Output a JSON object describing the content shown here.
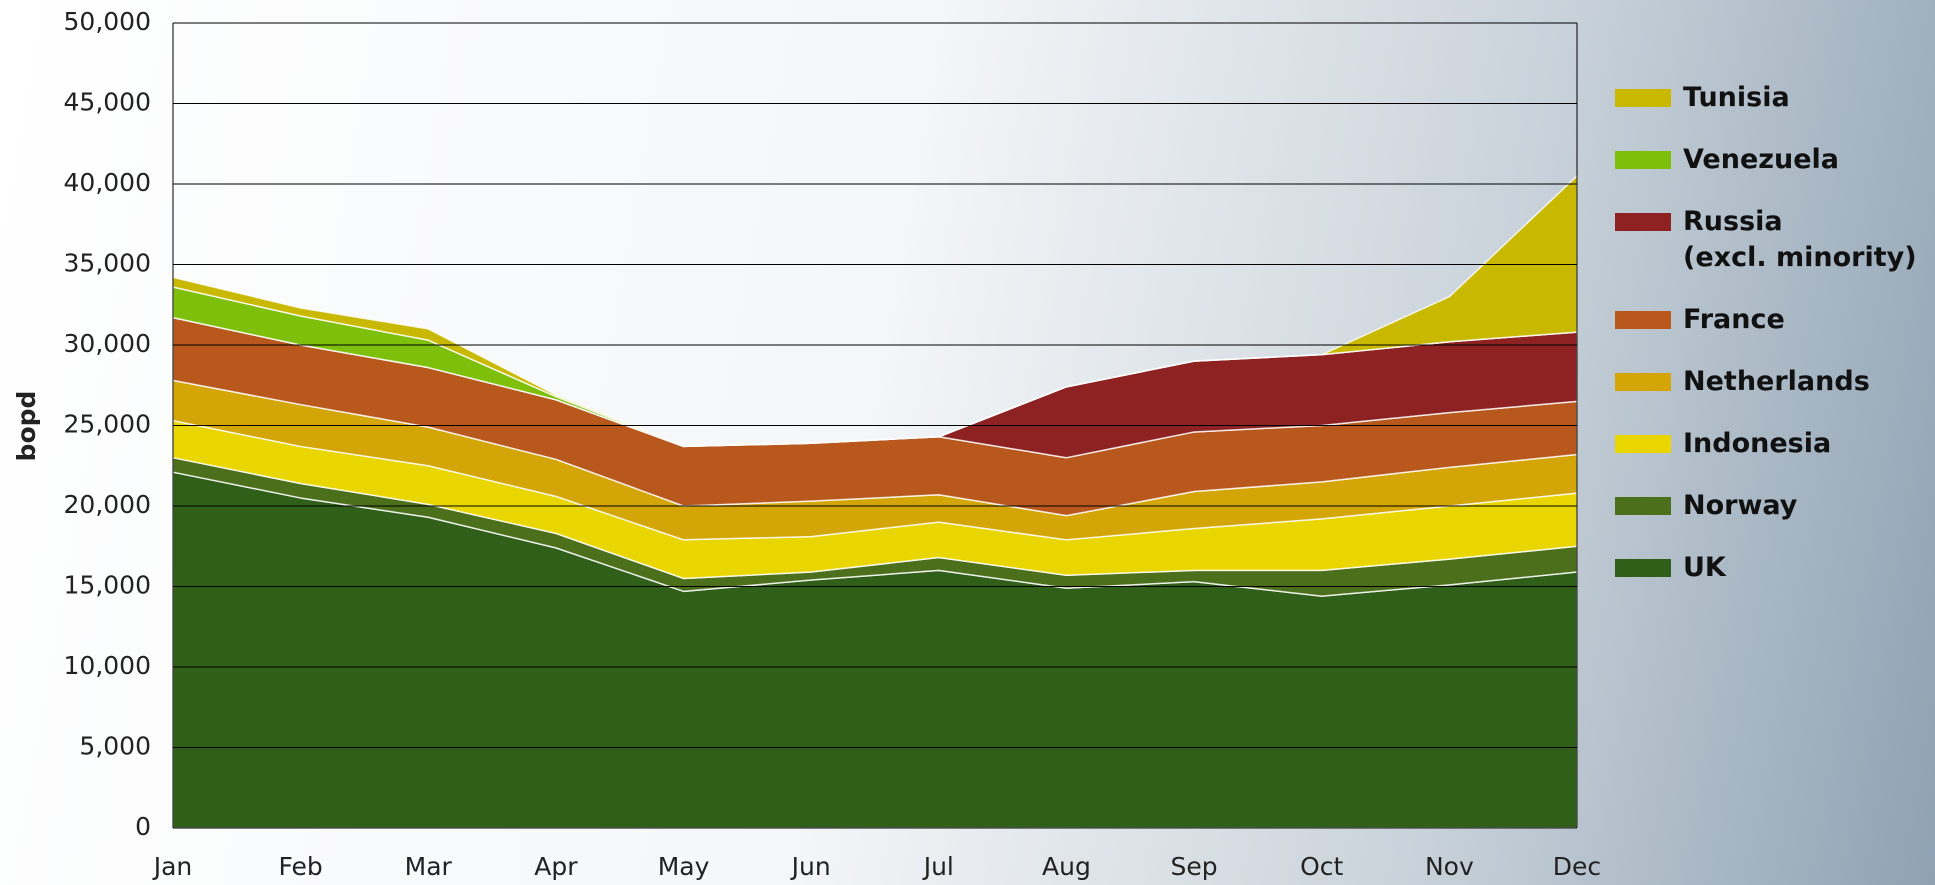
{
  "chart_data": {
    "type": "stacked-area",
    "y_label": "bopd",
    "categories": [
      "Jan",
      "Feb",
      "Mar",
      "Apr",
      "May",
      "Jun",
      "Jul",
      "Aug",
      "Sep",
      "Oct",
      "Nov",
      "Dec"
    ],
    "series": [
      {
        "name": "UK",
        "color": "#2f5f18",
        "values": [
          22100,
          20500,
          19300,
          17400,
          14700,
          15400,
          16000,
          14900,
          15300,
          14400,
          15100,
          15900
        ]
      },
      {
        "name": "Norway",
        "color": "#4c6f1c",
        "values": [
          900,
          900,
          800,
          900,
          800,
          500,
          800,
          800,
          700,
          1600,
          1600,
          1600
        ]
      },
      {
        "name": "Indonesia",
        "color": "#e9d600",
        "values": [
          2300,
          2300,
          2400,
          2300,
          2400,
          2200,
          2200,
          2200,
          2600,
          3200,
          3300,
          3300
        ]
      },
      {
        "name": "Netherlands",
        "color": "#d4a507",
        "values": [
          2500,
          2600,
          2400,
          2300,
          2100,
          2200,
          1700,
          1500,
          2300,
          2300,
          2400,
          2400
        ]
      },
      {
        "name": "France",
        "color": "#b8581d",
        "values": [
          3900,
          3700,
          3700,
          3700,
          3700,
          3600,
          3600,
          3600,
          3700,
          3500,
          3400,
          3300
        ]
      },
      {
        "name": "Russia\n(excl. minority)",
        "color": "#8e2222",
        "values": [
          0,
          0,
          0,
          0,
          0,
          0,
          0,
          4400,
          4400,
          4400,
          4400,
          4300
        ]
      },
      {
        "name": "Venezuela",
        "color": "#7dbf0a",
        "values": [
          1900,
          1800,
          1700,
          200,
          0,
          0,
          0,
          0,
          0,
          0,
          0,
          0
        ]
      },
      {
        "name": "Tunisia",
        "color": "#c9b800",
        "values": [
          600,
          500,
          700,
          100,
          0,
          0,
          0,
          0,
          0,
          0,
          2800,
          9700
        ]
      }
    ],
    "ylim": [
      0,
      50000
    ],
    "yticks": [
      0,
      {
        "value": 5000,
        "label": "5,000"
      },
      {
        "value": 10000,
        "label": "10,000"
      },
      {
        "value": 15000,
        "label": "15,000"
      },
      {
        "value": 20000,
        "label": "20,000"
      },
      {
        "value": 25000,
        "label": "25,000"
      },
      {
        "value": 30000,
        "label": "30,000"
      },
      {
        "value": 35000,
        "label": "35,000"
      },
      {
        "value": 40000,
        "label": "40,000"
      },
      {
        "value": 45000,
        "label": "45,000"
      },
      {
        "value": 50000,
        "label": "50,000"
      }
    ],
    "grid": true,
    "legend": "right"
  }
}
